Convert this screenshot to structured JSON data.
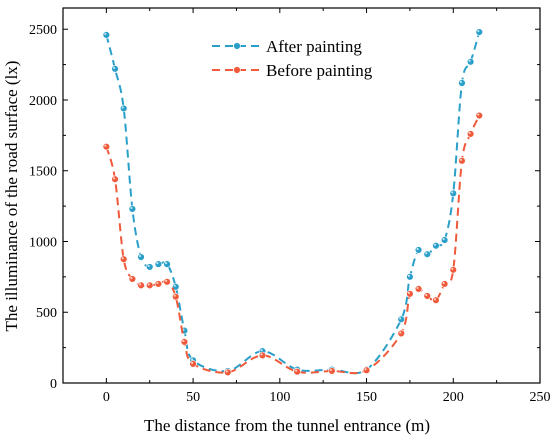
{
  "chart_data": {
    "type": "line",
    "xlabel": "The distance from the tunnel entrance (m)",
    "ylabel": "The illuminance of the road surface (lx)",
    "xlim": [
      -25,
      250
    ],
    "ylim": [
      0,
      2650
    ],
    "x_ticks": [
      0,
      50,
      100,
      150,
      200,
      250
    ],
    "y_ticks": [
      0,
      500,
      1000,
      1500,
      2000,
      2500
    ],
    "grid": false,
    "legend_position": "top-center",
    "series": [
      {
        "name": "After painting",
        "color": "#2a9fc9",
        "line_style": "dashed",
        "marker": "circle",
        "x": [
          0,
          5,
          10,
          15,
          20,
          25,
          30,
          35,
          40,
          45,
          50,
          70,
          90,
          110,
          130,
          150,
          170,
          175,
          180,
          185,
          190,
          195,
          200,
          205,
          210,
          215
        ],
        "y": [
          2460,
          2220,
          1940,
          1230,
          890,
          820,
          840,
          840,
          680,
          370,
          160,
          85,
          225,
          95,
          95,
          95,
          450,
          750,
          940,
          910,
          970,
          1010,
          1340,
          2120,
          2270,
          2480
        ]
      },
      {
        "name": "Before painting",
        "color": "#f05a3a",
        "line_style": "dashed",
        "marker": "circle",
        "x": [
          0,
          5,
          10,
          15,
          20,
          25,
          30,
          35,
          40,
          45,
          50,
          70,
          90,
          110,
          130,
          150,
          170,
          175,
          180,
          185,
          190,
          195,
          200,
          205,
          210,
          215
        ],
        "y": [
          1670,
          1440,
          875,
          735,
          690,
          690,
          700,
          715,
          610,
          290,
          135,
          75,
          195,
          80,
          85,
          90,
          350,
          630,
          665,
          615,
          585,
          700,
          800,
          1570,
          1760,
          1890
        ]
      }
    ]
  }
}
